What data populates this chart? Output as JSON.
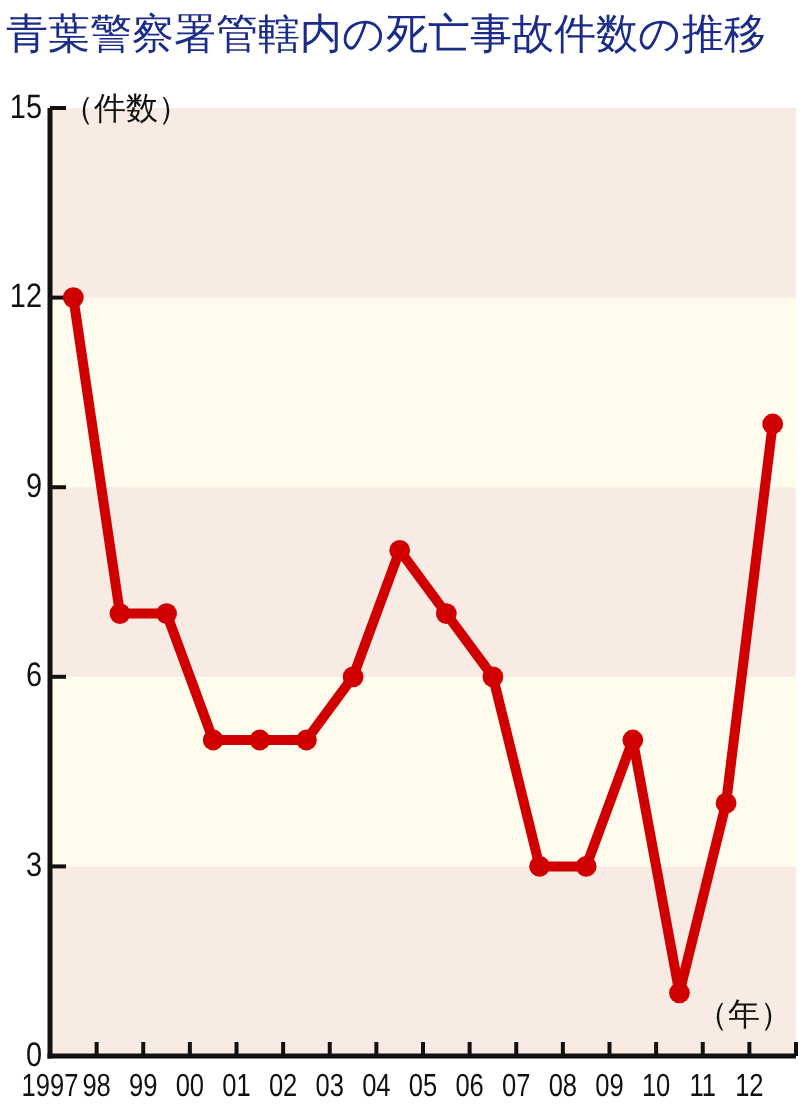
{
  "chart_data": {
    "type": "line",
    "title": "青葉警察署管轄内の死亡事故件数の推移",
    "ylabel": "（件数）",
    "xlabel": "（年）",
    "x": [
      1997.5,
      1998.5,
      1999.5,
      2000.5,
      2001.5,
      2002.5,
      2003.5,
      2004.5,
      2005.5,
      2006.5,
      2007.5,
      2008.5,
      2009.5,
      2010.5,
      2011.5,
      2012.5
    ],
    "values": [
      12,
      7,
      7,
      5,
      5,
      5,
      6,
      8,
      7,
      6,
      3,
      3,
      5,
      1,
      4,
      10
    ],
    "color": "#d00000",
    "marker": "circle",
    "line_style": "solid",
    "xlim": [
      1997,
      2013
    ],
    "xticks": [
      {
        "value": 1997,
        "label": "1997"
      },
      {
        "value": 1998,
        "label": "98"
      },
      {
        "value": 1999,
        "label": "99"
      },
      {
        "value": 2000,
        "label": "00"
      },
      {
        "value": 2001,
        "label": "01"
      },
      {
        "value": 2002,
        "label": "02"
      },
      {
        "value": 2003,
        "label": "03"
      },
      {
        "value": 2004,
        "label": "04"
      },
      {
        "value": 2005,
        "label": "05"
      },
      {
        "value": 2006,
        "label": "06"
      },
      {
        "value": 2007,
        "label": "07"
      },
      {
        "value": 2008,
        "label": "08"
      },
      {
        "value": 2009,
        "label": "09"
      },
      {
        "value": 2010,
        "label": "10"
      },
      {
        "value": 2011,
        "label": "11"
      },
      {
        "value": 2012,
        "label": "12"
      },
      {
        "value": 2013,
        "label": null
      }
    ],
    "ylim": [
      0,
      15
    ],
    "yticks": [
      0,
      3,
      6,
      9,
      12,
      15
    ],
    "bands": [
      {
        "axis": "y",
        "from": 0,
        "to": 3,
        "color": "#f8ebe3"
      },
      {
        "axis": "y",
        "from": 3,
        "to": 6,
        "color": "#fffbed"
      },
      {
        "axis": "y",
        "from": 6,
        "to": 9,
        "color": "#f8ebe3"
      },
      {
        "axis": "y",
        "from": 9,
        "to": 12,
        "color": "#fffbed"
      },
      {
        "axis": "y",
        "from": 12,
        "to": 15,
        "color": "#f8ebe3"
      }
    ]
  }
}
